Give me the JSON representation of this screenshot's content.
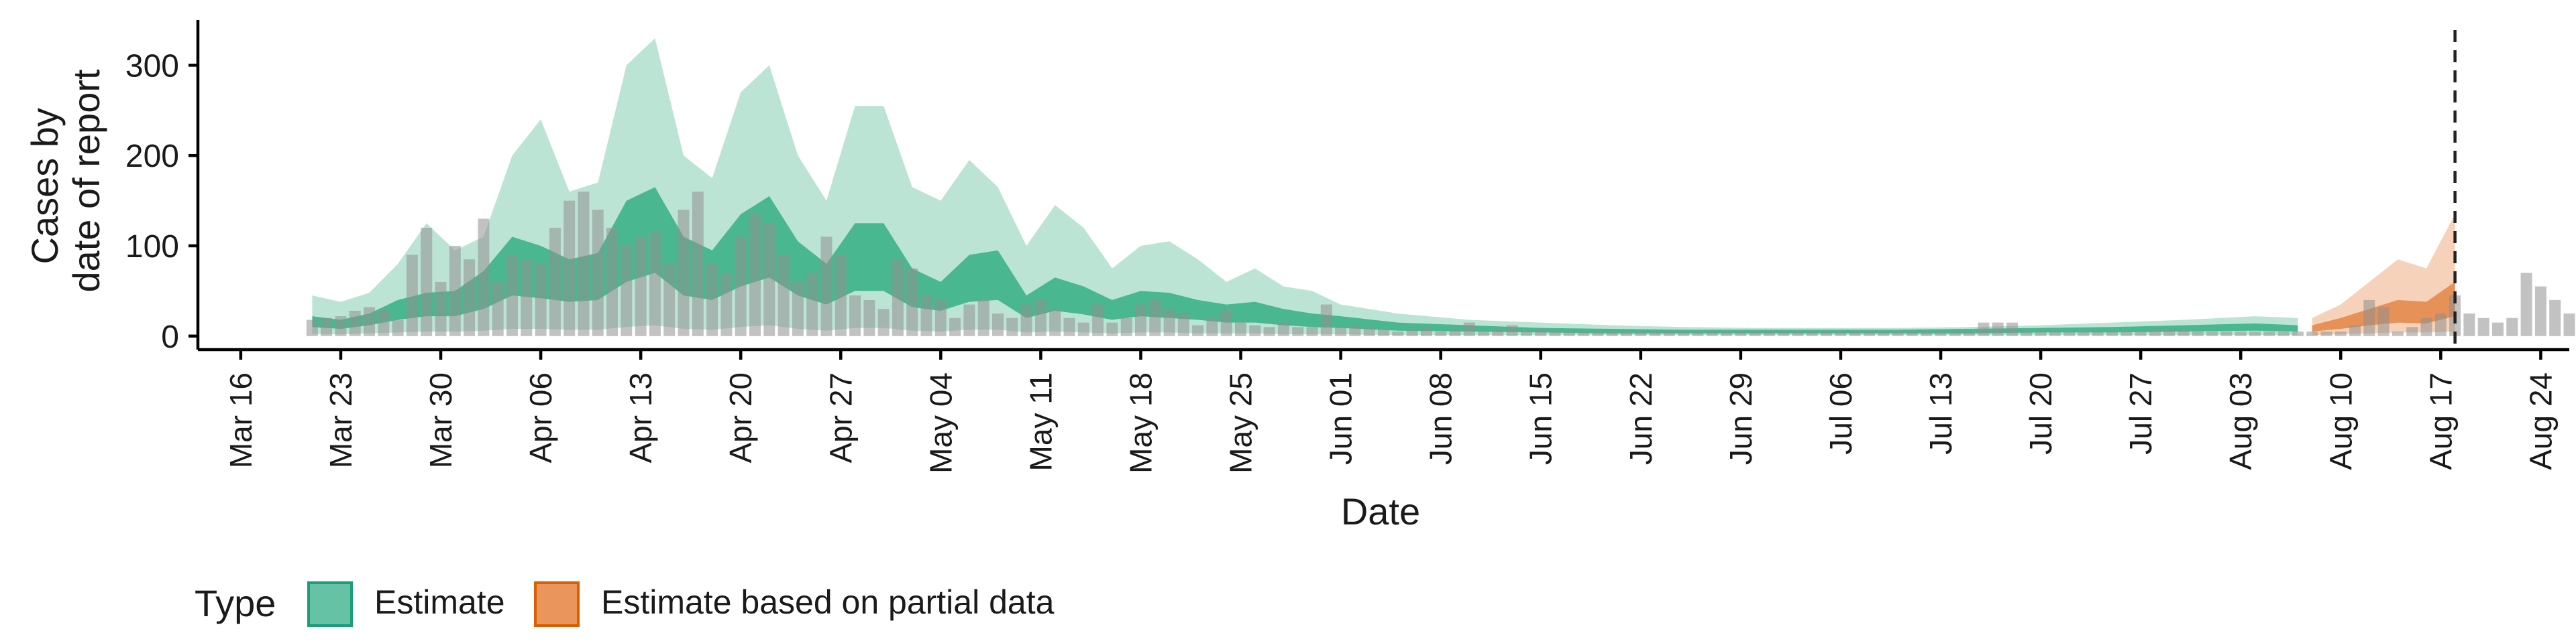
{
  "chart_data": {
    "type": "area",
    "xlabel": "Date",
    "ylabel_lines": [
      "Cases by",
      "date of report"
    ],
    "x_range": [
      "2020-03-13",
      "2020-08-26"
    ],
    "ylim": [
      -15,
      350
    ],
    "y_ticks": [
      0,
      100,
      200,
      300
    ],
    "y_tick_labels": [
      "0",
      "100",
      "200",
      "300"
    ],
    "x_ticks": [
      "2020-03-16",
      "2020-03-23",
      "2020-03-30",
      "2020-04-06",
      "2020-04-13",
      "2020-04-20",
      "2020-04-27",
      "2020-05-04",
      "2020-05-11",
      "2020-05-18",
      "2020-05-25",
      "2020-06-01",
      "2020-06-08",
      "2020-06-15",
      "2020-06-22",
      "2020-06-29",
      "2020-07-06",
      "2020-07-13",
      "2020-07-20",
      "2020-07-27",
      "2020-08-03",
      "2020-08-10",
      "2020-08-17",
      "2020-08-24"
    ],
    "x_tick_labels": [
      "Mar 16",
      "Mar 23",
      "Mar 30",
      "Apr 06",
      "Apr 13",
      "Apr 20",
      "Apr 27",
      "May 04",
      "May 11",
      "May 18",
      "May 25",
      "Jun 01",
      "Jun 08",
      "Jun 15",
      "Jun 22",
      "Jun 29",
      "Jul 06",
      "Jul 13",
      "Jul 20",
      "Jul 27",
      "Aug 03",
      "Aug 10",
      "Aug 17",
      "Aug 24"
    ],
    "vline_date": "2020-08-18",
    "grid": false,
    "legend": {
      "title": "Type",
      "position": "bottom-left",
      "items": [
        {
          "label": "Estimate",
          "fill": "#66c2a5",
          "stroke": "#1b9e77"
        },
        {
          "label": "Estimate based on partial data",
          "fill": "#e9955c",
          "stroke": "#d95f02"
        }
      ]
    },
    "colors": {
      "estimate_outer": "#a6dbc7",
      "estimate_inner": "#3cb38a",
      "partial_outer": "#f2c3a2",
      "partial_inner": "#e38a4e",
      "bars": "#8f8f8f"
    },
    "series": [
      {
        "name": "Estimate",
        "x": [
          "2020-03-21",
          "2020-03-23",
          "2020-03-25",
          "2020-03-27",
          "2020-03-29",
          "2020-03-31",
          "2020-04-02",
          "2020-04-04",
          "2020-04-06",
          "2020-04-08",
          "2020-04-10",
          "2020-04-12",
          "2020-04-14",
          "2020-04-16",
          "2020-04-18",
          "2020-04-20",
          "2020-04-22",
          "2020-04-24",
          "2020-04-26",
          "2020-04-28",
          "2020-04-30",
          "2020-05-02",
          "2020-05-04",
          "2020-05-06",
          "2020-05-08",
          "2020-05-10",
          "2020-05-12",
          "2020-05-14",
          "2020-05-16",
          "2020-05-18",
          "2020-05-20",
          "2020-05-22",
          "2020-05-24",
          "2020-05-26",
          "2020-05-28",
          "2020-05-30",
          "2020-06-01",
          "2020-06-05",
          "2020-06-10",
          "2020-06-15",
          "2020-06-20",
          "2020-06-25",
          "2020-06-30",
          "2020-07-05",
          "2020-07-10",
          "2020-07-15",
          "2020-07-20",
          "2020-07-25",
          "2020-07-30",
          "2020-08-04",
          "2020-08-07"
        ],
        "outer_upper": [
          45,
          38,
          48,
          80,
          125,
          95,
          110,
          200,
          240,
          160,
          170,
          300,
          330,
          200,
          175,
          270,
          300,
          200,
          150,
          255,
          255,
          165,
          150,
          195,
          165,
          100,
          145,
          120,
          75,
          100,
          105,
          85,
          60,
          75,
          55,
          50,
          35,
          25,
          18,
          15,
          12,
          10,
          9,
          9,
          9,
          10,
          12,
          15,
          18,
          22,
          20
        ],
        "inner_upper": [
          22,
          18,
          25,
          40,
          48,
          50,
          72,
          110,
          100,
          85,
          92,
          150,
          165,
          110,
          95,
          135,
          155,
          105,
          80,
          125,
          125,
          75,
          60,
          90,
          95,
          45,
          65,
          55,
          40,
          50,
          48,
          40,
          35,
          38,
          30,
          25,
          22,
          15,
          12,
          9,
          8,
          7,
          7,
          7,
          7,
          8,
          9,
          10,
          12,
          14,
          12
        ],
        "inner_lower": [
          10,
          8,
          12,
          18,
          22,
          22,
          30,
          45,
          42,
          38,
          40,
          60,
          70,
          45,
          40,
          55,
          65,
          45,
          35,
          50,
          50,
          32,
          28,
          38,
          40,
          20,
          28,
          24,
          18,
          22,
          20,
          18,
          15,
          15,
          12,
          10,
          9,
          6,
          5,
          4,
          3,
          3,
          3,
          3,
          3,
          3,
          4,
          4,
          5,
          6,
          5
        ],
        "outer_lower": [
          2,
          2,
          3,
          4,
          5,
          5,
          6,
          8,
          8,
          7,
          7,
          10,
          12,
          8,
          7,
          10,
          12,
          8,
          6,
          9,
          9,
          6,
          5,
          7,
          7,
          4,
          5,
          4,
          3,
          4,
          4,
          3,
          3,
          3,
          2,
          2,
          2,
          1,
          1,
          1,
          1,
          1,
          1,
          1,
          1,
          1,
          1,
          1,
          1,
          1,
          1
        ]
      },
      {
        "name": "Estimate based on partial data",
        "x": [
          "2020-08-08",
          "2020-08-10",
          "2020-08-12",
          "2020-08-14",
          "2020-08-16",
          "2020-08-18"
        ],
        "outer_upper": [
          20,
          35,
          60,
          85,
          75,
          135
        ],
        "inner_upper": [
          12,
          20,
          30,
          40,
          38,
          60
        ],
        "inner_lower": [
          5,
          8,
          12,
          15,
          14,
          22
        ],
        "outer_lower": [
          1,
          2,
          3,
          4,
          4,
          5
        ]
      }
    ],
    "reported_cases": {
      "start": "2020-03-21",
      "values": [
        18,
        20,
        22,
        28,
        32,
        30,
        18,
        90,
        120,
        60,
        100,
        85,
        130,
        60,
        90,
        85,
        80,
        120,
        150,
        160,
        140,
        120,
        100,
        110,
        115,
        80,
        140,
        160,
        80,
        70,
        110,
        135,
        125,
        90,
        60,
        70,
        110,
        90,
        45,
        40,
        30,
        85,
        75,
        45,
        40,
        20,
        35,
        40,
        25,
        20,
        35,
        40,
        30,
        20,
        15,
        35,
        15,
        20,
        35,
        40,
        30,
        25,
        12,
        20,
        30,
        15,
        12,
        10,
        15,
        10,
        10,
        35,
        10,
        12,
        10,
        8,
        5,
        8,
        10,
        5,
        8,
        15,
        5,
        8,
        12,
        5,
        8,
        6,
        5,
        5,
        5,
        5,
        5,
        5,
        5,
        5,
        5,
        5,
        5,
        5,
        5,
        5,
        5,
        5,
        5,
        5,
        5,
        5,
        5,
        5,
        5,
        5,
        5,
        5,
        5,
        5,
        5,
        15,
        15,
        15,
        5,
        5,
        5,
        5,
        5,
        5,
        5,
        5,
        5,
        8,
        8,
        8,
        5,
        5,
        5,
        5,
        5,
        5,
        5,
        5,
        5,
        5,
        5,
        12,
        40,
        32,
        5,
        10,
        20,
        25,
        45,
        25,
        20,
        15,
        20,
        70,
        55,
        40,
        25,
        40,
        25
      ]
    }
  }
}
